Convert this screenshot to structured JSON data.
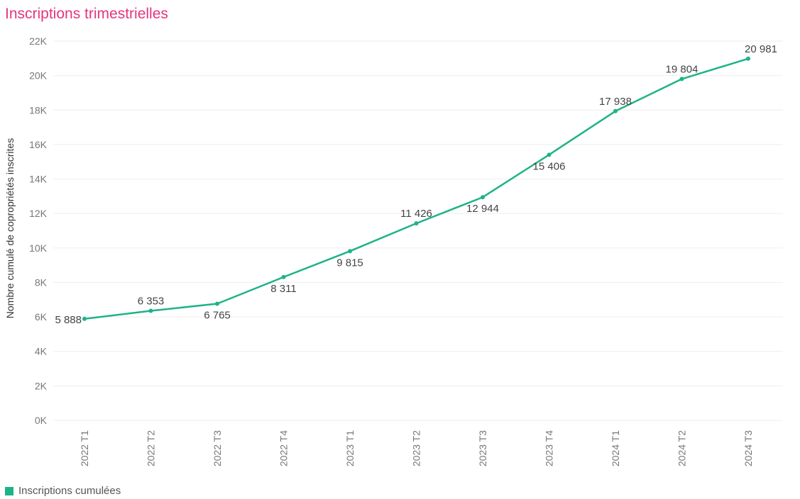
{
  "chart_data": {
    "type": "line",
    "title": "Inscriptions trimestrielles",
    "xlabel": "",
    "ylabel": "Nombre cumulé de copropriétés inscrites",
    "categories": [
      "2022 T1",
      "2022 T2",
      "2022 T3",
      "2022 T4",
      "2023 T1",
      "2023 T2",
      "2023 T3",
      "2023 T4",
      "2024 T1",
      "2024 T2",
      "2024 T3"
    ],
    "series": [
      {
        "name": "Inscriptions cumulées",
        "values": [
          5888,
          6353,
          6765,
          8311,
          9815,
          11426,
          12944,
          15406,
          17938,
          19804,
          20981
        ],
        "labels": [
          "5 888",
          "6 353",
          "6 765",
          "8 311",
          "9 815",
          "11 426",
          "12 944",
          "15 406",
          "17 938",
          "19 804",
          "20 981"
        ],
        "color": "#1db388"
      }
    ],
    "ylim": [
      0,
      22000
    ],
    "yticks": [
      0,
      2000,
      4000,
      6000,
      8000,
      10000,
      12000,
      14000,
      16000,
      18000,
      20000,
      22000
    ],
    "ytick_labels": [
      "0K",
      "2K",
      "4K",
      "6K",
      "8K",
      "10K",
      "12K",
      "14K",
      "16K",
      "18K",
      "20K",
      "22K"
    ],
    "grid": true,
    "legend": "bottom-left"
  }
}
